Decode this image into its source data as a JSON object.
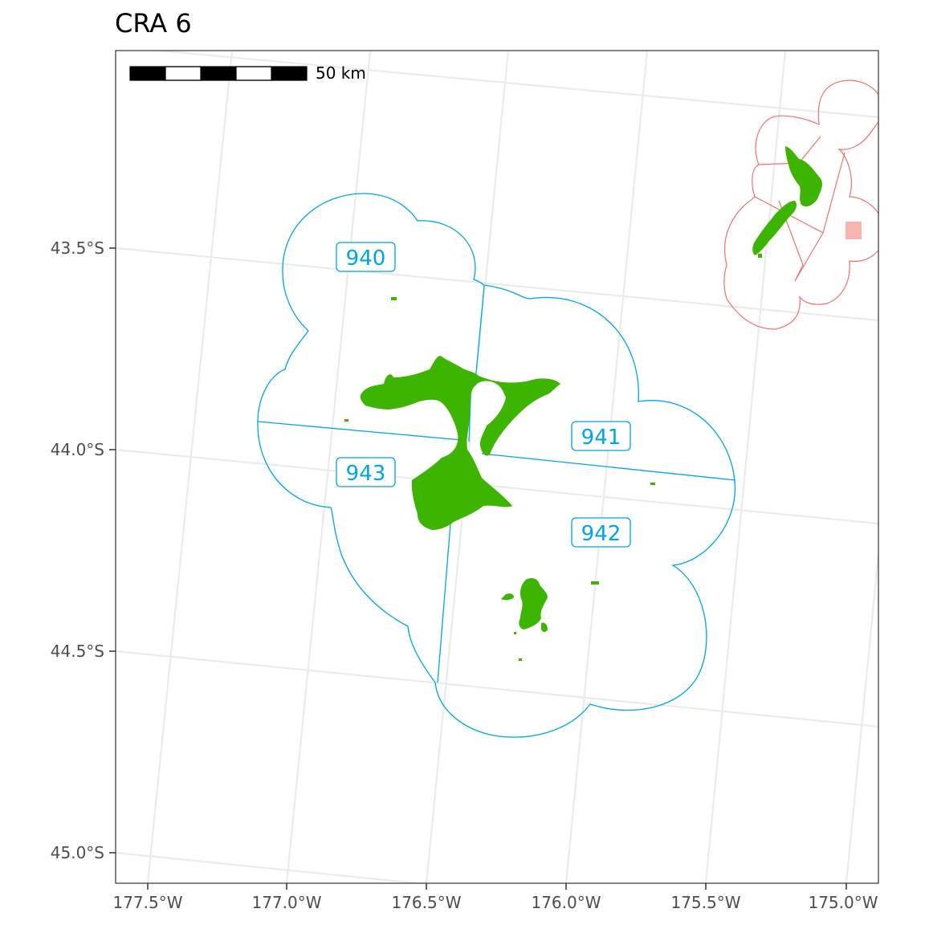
{
  "title": "CRA 6",
  "scale_bar": {
    "label": "50 km"
  },
  "axes": {
    "y_ticks": [
      "43.5°S",
      "44.0°S",
      "44.5°S",
      "45.0°S"
    ],
    "x_ticks": [
      "177.5°W",
      "177.0°W",
      "176.5°W",
      "176.0°W",
      "175.5°W",
      "175.0°W"
    ]
  },
  "areas": [
    {
      "code": "940"
    },
    {
      "code": "941"
    },
    {
      "code": "942"
    },
    {
      "code": "943"
    }
  ],
  "colors": {
    "boundary": "#00a5e6",
    "land": "#3cb400",
    "inset_boundary": "#f0736b",
    "inset_highlight": "#f8b4b1",
    "grid": "#ebebeb",
    "panel_border": "#333333"
  }
}
